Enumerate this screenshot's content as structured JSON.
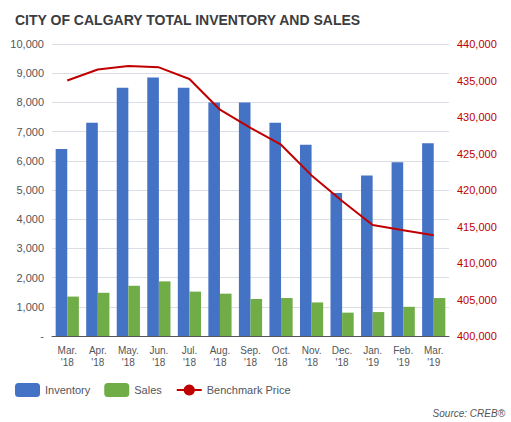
{
  "chart_data": {
    "type": "bar",
    "title": "CITY OF CALGARY TOTAL INVENTORY AND SALES",
    "categories": [
      "Mar.\n'18",
      "Apr.\n'18",
      "May.\n'18",
      "Jun.\n'18",
      "Jul.\n'18",
      "Aug.\n'18",
      "Sep.\n'18",
      "Oct.\n'18",
      "Nov.\n'18",
      "Dec.\n'18",
      "Jan.\n'19",
      "Feb.\n'19",
      "Mar.\n'19"
    ],
    "series": [
      {
        "name": "Inventory",
        "type": "bar",
        "color": "#4472C4",
        "values": [
          6400,
          7300,
          8500,
          8850,
          8500,
          8000,
          8000,
          7300,
          6550,
          4900,
          5500,
          5950,
          6600
        ]
      },
      {
        "name": "Sales",
        "type": "bar",
        "color": "#70AD47",
        "values": [
          1350,
          1480,
          1720,
          1870,
          1520,
          1450,
          1270,
          1300,
          1150,
          800,
          820,
          1000,
          1300
        ]
      },
      {
        "name": "Benchmark Price",
        "type": "line",
        "color": "#C00000",
        "axis": "y2",
        "values": [
          435000,
          436500,
          437000,
          436800,
          435200,
          431000,
          428500,
          426200,
          422000,
          418500,
          415200,
          414500,
          413800
        ]
      }
    ],
    "ylim": [
      0,
      10000
    ],
    "yticks": [
      {
        "value": 0,
        "label": "-"
      },
      {
        "value": 1000,
        "label": "1,000"
      },
      {
        "value": 2000,
        "label": "2,000"
      },
      {
        "value": 3000,
        "label": "3,000"
      },
      {
        "value": 4000,
        "label": "4,000"
      },
      {
        "value": 5000,
        "label": "5,000"
      },
      {
        "value": 6000,
        "label": "6,000"
      },
      {
        "value": 7000,
        "label": "7,000"
      },
      {
        "value": 8000,
        "label": "8,000"
      },
      {
        "value": 9000,
        "label": "9,000"
      },
      {
        "value": 10000,
        "label": "10,000"
      }
    ],
    "y2lim": [
      400000,
      440000
    ],
    "y2ticks": [
      {
        "value": 400000,
        "label": "400,000"
      },
      {
        "value": 405000,
        "label": "405,000"
      },
      {
        "value": 410000,
        "label": "410,000"
      },
      {
        "value": 415000,
        "label": "415,000"
      },
      {
        "value": 420000,
        "label": "420,000"
      },
      {
        "value": 425000,
        "label": "425,000"
      },
      {
        "value": 430000,
        "label": "430,000"
      },
      {
        "value": 435000,
        "label": "435,000"
      },
      {
        "value": 440000,
        "label": "440,000"
      }
    ],
    "grid": true,
    "legend": "bottom",
    "annotations": [
      "Source: CREB®"
    ]
  }
}
